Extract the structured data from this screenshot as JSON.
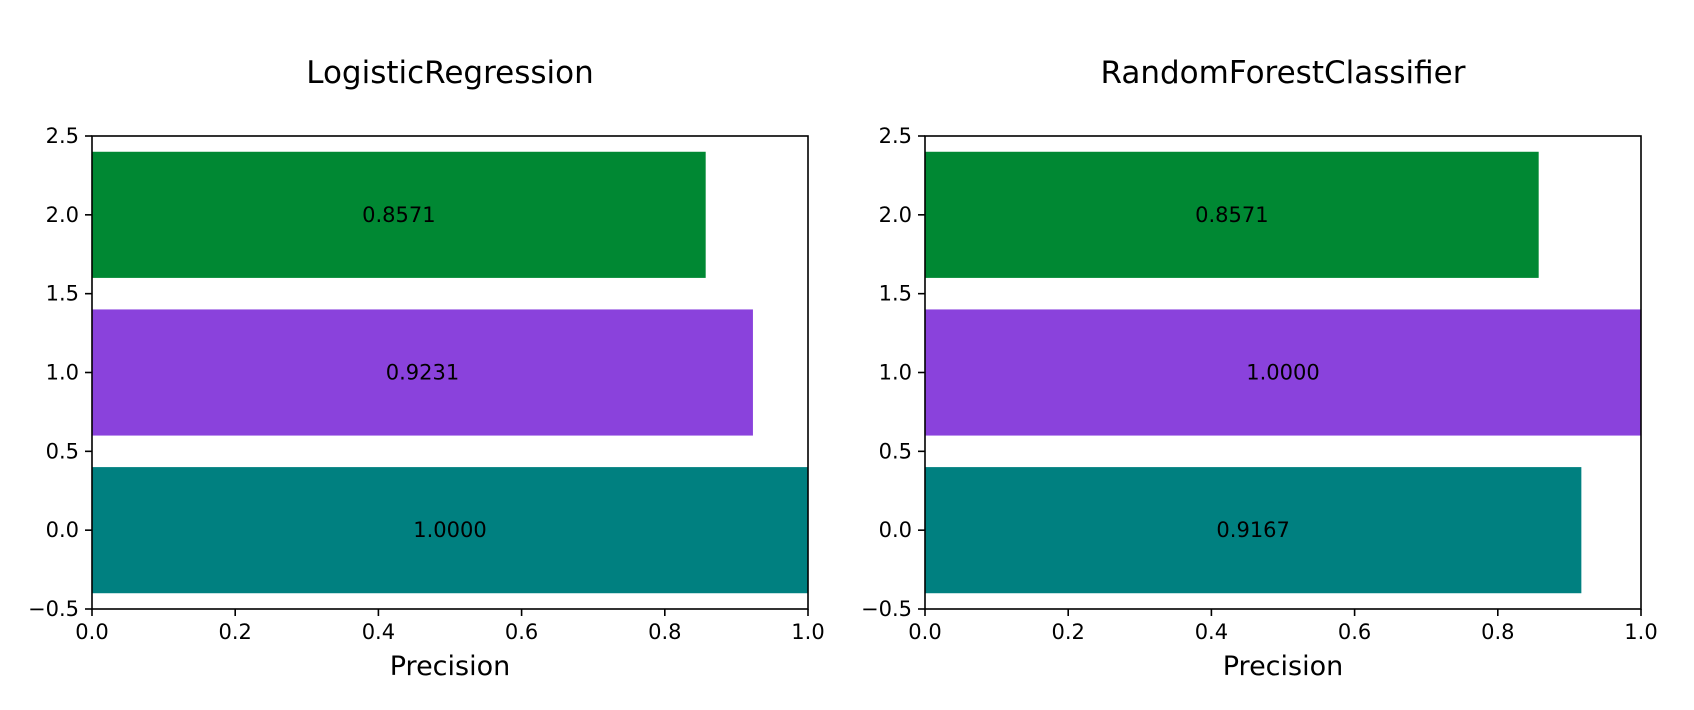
{
  "chart_data": [
    {
      "type": "bar",
      "orientation": "horizontal",
      "title": "LogisticRegression",
      "xlabel": "Precision",
      "ylabel": "",
      "xlim": [
        0.0,
        1.0
      ],
      "ylim": [
        -0.5,
        2.5
      ],
      "xticks": [
        0.0,
        0.2,
        0.4,
        0.6,
        0.8,
        1.0
      ],
      "xtick_labels": [
        "0.0",
        "0.2",
        "0.4",
        "0.6",
        "0.8",
        "1.0"
      ],
      "yticks": [
        -0.5,
        0.0,
        0.5,
        1.0,
        1.5,
        2.0,
        2.5
      ],
      "ytick_labels": [
        "−0.5",
        "0.0",
        "0.5",
        "1.0",
        "1.5",
        "2.0",
        "2.5"
      ],
      "positions": [
        0,
        1,
        2
      ],
      "values": [
        1.0,
        0.9231,
        0.8571
      ],
      "data_labels": [
        "1.0000",
        "0.9231",
        "0.8571"
      ],
      "colors": [
        "#008080",
        "#8a42dc",
        "#008833"
      ],
      "grid": false,
      "legend": "none"
    },
    {
      "type": "bar",
      "orientation": "horizontal",
      "title": "RandomForestClassifier",
      "xlabel": "Precision",
      "ylabel": "",
      "xlim": [
        0.0,
        1.0
      ],
      "ylim": [
        -0.5,
        2.5
      ],
      "xticks": [
        0.0,
        0.2,
        0.4,
        0.6,
        0.8,
        1.0
      ],
      "xtick_labels": [
        "0.0",
        "0.2",
        "0.4",
        "0.6",
        "0.8",
        "1.0"
      ],
      "yticks": [
        -0.5,
        0.0,
        0.5,
        1.0,
        1.5,
        2.0,
        2.5
      ],
      "ytick_labels": [
        "−0.5",
        "0.0",
        "0.5",
        "1.0",
        "1.5",
        "2.0",
        "2.5"
      ],
      "positions": [
        0,
        1,
        2
      ],
      "values": [
        0.9167,
        1.0,
        0.8571
      ],
      "data_labels": [
        "0.9167",
        "1.0000",
        "0.8571"
      ],
      "colors": [
        "#008080",
        "#8a42dc",
        "#008833"
      ],
      "grid": false,
      "legend": "none"
    }
  ]
}
